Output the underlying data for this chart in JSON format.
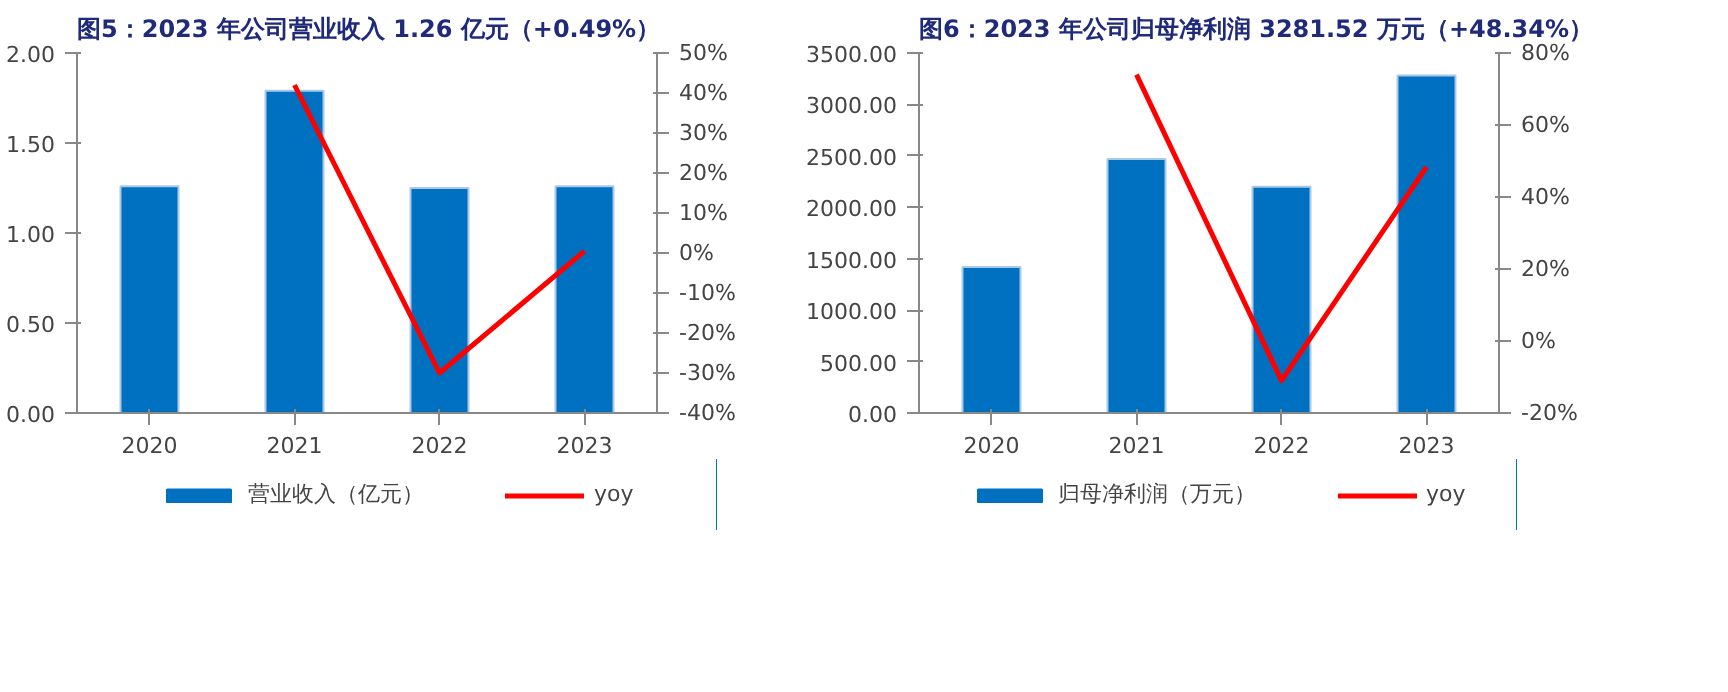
{
  "chart_data": [
    {
      "type": "bar",
      "title": "图5：2023 年公司营业收入 1.26 亿元（+0.49%）",
      "categories": [
        "2020",
        "2021",
        "2022",
        "2023"
      ],
      "series": [
        {
          "name": "营业收入（亿元）",
          "color": "#0070c0",
          "values": [
            1.26,
            1.79,
            1.25,
            1.26
          ]
        },
        {
          "name": "yoy",
          "type": "line",
          "axis": "y2",
          "color": "#ff0000",
          "values": [
            null,
            42,
            -30,
            0.49
          ]
        }
      ],
      "ylim": [
        0,
        2
      ],
      "yticks": [
        {
          "value": 0,
          "label": "0.00"
        },
        {
          "value": 0.5,
          "label": "0.50"
        },
        {
          "value": 1,
          "label": "1.00"
        },
        {
          "value": 1.5,
          "label": "1.50"
        },
        {
          "value": 2,
          "label": "2.00"
        }
      ],
      "y2lim": [
        -40,
        50
      ],
      "y2ticks": [
        {
          "value": -40,
          "label": "-40%"
        },
        {
          "value": -30,
          "label": "-30%"
        },
        {
          "value": -20,
          "label": "-20%"
        },
        {
          "value": -10,
          "label": "-10%"
        },
        {
          "value": 0,
          "label": "0%"
        },
        {
          "value": 10,
          "label": "10%"
        },
        {
          "value": 20,
          "label": "20%"
        },
        {
          "value": 30,
          "label": "30%"
        },
        {
          "value": 40,
          "label": "40%"
        },
        {
          "value": 50,
          "label": "50%"
        }
      ],
      "legend": "bottom",
      "grid": false
    },
    {
      "type": "bar",
      "title": "图6：2023 年公司归母净利润 3281.52 万元（+48.34%）",
      "categories": [
        "2020",
        "2021",
        "2022",
        "2023"
      ],
      "series": [
        {
          "name": "归母净利润（万元）",
          "color": "#0070c0",
          "values": [
            1420,
            2470,
            2200,
            3281.52
          ]
        },
        {
          "name": "yoy",
          "type": "line",
          "axis": "y2",
          "color": "#ff0000",
          "values": [
            null,
            74,
            -11,
            48.34
          ]
        }
      ],
      "ylim": [
        0,
        3500
      ],
      "yticks": [
        {
          "value": 0,
          "label": "0.00"
        },
        {
          "value": 500,
          "label": "500.00"
        },
        {
          "value": 1000,
          "label": "1000.00"
        },
        {
          "value": 1500,
          "label": "1500.00"
        },
        {
          "value": 2000,
          "label": "2000.00"
        },
        {
          "value": 2500,
          "label": "2500.00"
        },
        {
          "value": 3000,
          "label": "3000.00"
        },
        {
          "value": 3500,
          "label": "3500.00"
        }
      ],
      "y2lim": [
        -20,
        80
      ],
      "y2ticks": [
        {
          "value": -20,
          "label": "-20%"
        },
        {
          "value": 0,
          "label": "0%"
        },
        {
          "value": 20,
          "label": "20%"
        },
        {
          "value": 40,
          "label": "40%"
        },
        {
          "value": 60,
          "label": "60%"
        },
        {
          "value": 80,
          "label": "80%"
        }
      ],
      "legend": "bottom",
      "grid": false
    }
  ]
}
